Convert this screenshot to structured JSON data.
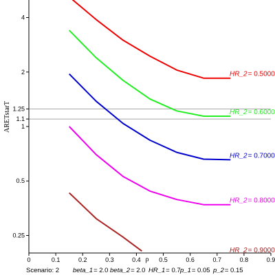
{
  "chart_data": {
    "type": "line",
    "xlabel": "ρ",
    "ylabel": "ARETstarT",
    "xlim": [
      0,
      0.9
    ],
    "ylim": [
      0.2,
      5
    ],
    "yscale": "log",
    "xticks": [
      "0",
      "0.1",
      "0.2",
      "0.3",
      "0.4",
      "0.5",
      "0.6",
      "0.7",
      "0.8",
      "0.9"
    ],
    "yticks": [
      {
        "value": 0.25,
        "label": "0.25"
      },
      {
        "value": 0.5,
        "label": "0.5"
      },
      {
        "value": 1,
        "label": "1"
      },
      {
        "value": 1.1,
        "label": "1.1"
      },
      {
        "value": 1.25,
        "label": "1.25"
      },
      {
        "value": 2,
        "label": "2"
      },
      {
        "value": 4,
        "label": "4"
      }
    ],
    "reference_lines": [
      1.1,
      1.25
    ],
    "grid": false,
    "series": [
      {
        "name": "HR_2 = 0.5000",
        "label_name": "HR_2",
        "label_value": "= 0.5000",
        "color": "#ee0000",
        "x": [
          0.15,
          0.25,
          0.35,
          0.45,
          0.55,
          0.65,
          0.75
        ],
        "y": [
          5.2,
          3.9,
          3.0,
          2.45,
          2.05,
          1.85,
          1.85
        ]
      },
      {
        "name": "HR_2 = 0.6000",
        "label_name": "HR_2",
        "label_value": "= 0.6000",
        "color": "#22ee22",
        "x": [
          0.15,
          0.25,
          0.35,
          0.45,
          0.55,
          0.65,
          0.75
        ],
        "y": [
          3.4,
          2.4,
          1.8,
          1.42,
          1.22,
          1.14,
          1.14
        ]
      },
      {
        "name": "HR_2 = 0.7000",
        "label_name": "HR_2",
        "label_value": "= 0.7000",
        "color": "#0000cc",
        "x": [
          0.15,
          0.25,
          0.35,
          0.45,
          0.55,
          0.65,
          0.75
        ],
        "y": [
          1.95,
          1.38,
          1.04,
          0.84,
          0.72,
          0.66,
          0.655
        ]
      },
      {
        "name": "HR_2 = 0.8000",
        "label_name": "HR_2",
        "label_value": "= 0.8000",
        "color": "#ee00ee",
        "x": [
          0.15,
          0.25,
          0.35,
          0.45,
          0.55,
          0.65,
          0.75
        ],
        "y": [
          1.0,
          0.7,
          0.53,
          0.44,
          0.395,
          0.37,
          0.37
        ]
      },
      {
        "name": "HR_2 = 0.9000",
        "label_name": "HR_2",
        "label_value": "= 0.9000",
        "color": "#aa2222",
        "x": [
          0.15,
          0.25,
          0.35,
          0.42
        ],
        "y": [
          0.43,
          0.31,
          0.245,
          0.205
        ]
      }
    ],
    "footer": {
      "scenario": "Scenario: 2",
      "params": [
        {
          "name": "beta_1",
          "value": "= 2.0"
        },
        {
          "name": "beta_2",
          "value": "= 2.0"
        },
        {
          "name": "HR_1",
          "value": "= 0.7"
        },
        {
          "name": "p_1",
          "value": "= 0.05"
        },
        {
          "name": "p_2",
          "value": "= 0.15"
        }
      ]
    }
  }
}
